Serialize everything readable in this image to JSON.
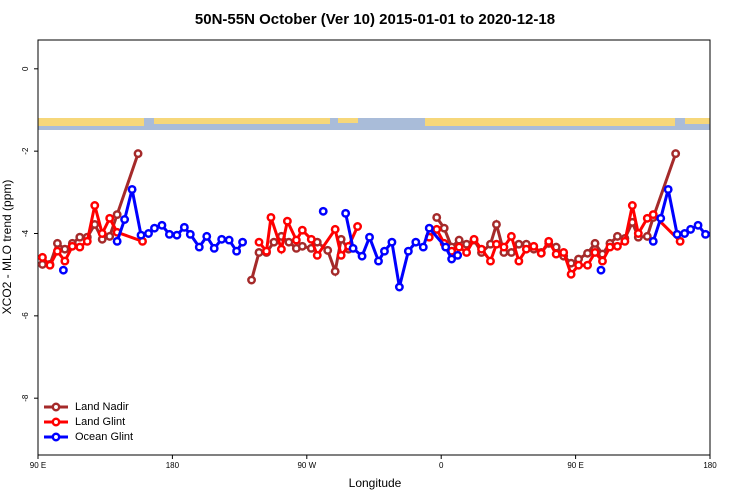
{
  "chart_data": {
    "type": "line",
    "title": "50N-55N October (Ver 10)   2015-01-01 to 2020-12-18",
    "xlabel": "Longitude",
    "ylabel": "XCO2 - MLO trend (ppm)",
    "xlim": [
      90,
      540
    ],
    "ylim": [
      -9.38,
      0.7
    ],
    "xticks": [
      {
        "value": 90,
        "label": "90 E"
      },
      {
        "value": 180,
        "label": "180"
      },
      {
        "value": 270,
        "label": "90 W"
      },
      {
        "value": 360,
        "label": "0"
      },
      {
        "value": 450,
        "label": "90 E"
      },
      {
        "value": 540,
        "label": "180"
      }
    ],
    "yticks": [
      0,
      -2,
      -4,
      -6,
      -8
    ],
    "legend": "bottom-left",
    "series": [
      {
        "name": "Land Nadir",
        "color": "#a52a2a",
        "x": [
          93,
          98,
          103,
          108,
          113,
          118,
          123,
          128,
          133,
          138,
          143,
          157,
          null,
          233,
          238,
          243,
          248,
          253,
          258,
          263,
          267,
          273,
          277,
          284,
          289,
          293,
          298,
          null,
          357,
          362,
          367,
          372,
          377,
          382,
          387,
          393,
          397,
          402,
          407,
          412,
          417,
          422,
          427,
          432,
          437,
          442,
          447,
          452,
          458,
          463,
          468,
          473,
          478,
          483,
          488,
          492,
          498,
          502,
          517
        ],
        "values": [
          -4.75,
          -4.75,
          -4.24,
          -4.38,
          -4.24,
          -4.09,
          -4.09,
          -3.78,
          -4.14,
          -4.07,
          -3.54,
          -2.06,
          null,
          -5.13,
          -4.46,
          -4.46,
          -4.21,
          -4.07,
          -4.21,
          -4.36,
          -4.31,
          -4.36,
          -4.21,
          -4.41,
          -4.92,
          -4.14,
          -4.38,
          null,
          -3.61,
          -3.87,
          -4.33,
          -4.16,
          -4.26,
          -4.16,
          -4.46,
          -4.26,
          -3.78,
          -4.46,
          -4.46,
          -4.26,
          -4.26,
          -4.38,
          -4.46,
          -4.24,
          -4.33,
          -4.55,
          -4.72,
          -4.62,
          -4.48,
          -4.24,
          -4.5,
          -4.24,
          -4.07,
          -4.12,
          -3.73,
          -4.09,
          -4.07,
          -3.61,
          -2.06
        ]
      },
      {
        "name": "Land Glint",
        "color": "#ff0000",
        "x": [
          93,
          98,
          103,
          108,
          113,
          118,
          123,
          128,
          133,
          138,
          143,
          160,
          null,
          238,
          243,
          246,
          253,
          257,
          263,
          267,
          273,
          277,
          289,
          293,
          298,
          304,
          null,
          352,
          357,
          362,
          367,
          372,
          377,
          382,
          387,
          393,
          397,
          402,
          407,
          412,
          417,
          422,
          427,
          432,
          437,
          442,
          447,
          452,
          458,
          463,
          468,
          473,
          478,
          483,
          488,
          492,
          498,
          502,
          520
        ],
        "values": [
          -4.58,
          -4.77,
          -4.43,
          -4.67,
          -4.31,
          -4.33,
          -4.19,
          -3.32,
          -4.0,
          -3.63,
          -3.97,
          -4.19,
          null,
          -4.21,
          -4.43,
          -3.61,
          -4.38,
          -3.7,
          -4.16,
          -3.92,
          -4.14,
          -4.53,
          -3.9,
          -4.53,
          -4.31,
          -3.83,
          null,
          -4.09,
          -3.9,
          -4.24,
          -4.43,
          -4.33,
          -4.46,
          -4.14,
          -4.38,
          -4.67,
          -4.26,
          -4.33,
          -4.07,
          -4.67,
          -4.38,
          -4.31,
          -4.48,
          -4.19,
          -4.5,
          -4.46,
          -4.99,
          -4.77,
          -4.77,
          -4.46,
          -4.67,
          -4.33,
          -4.31,
          -4.19,
          -3.32,
          -4.0,
          -3.63,
          -3.54,
          -4.19
        ]
      },
      {
        "name": "Ocean Glint",
        "color": "#0000ff",
        "x": [
          107,
          null,
          143,
          148,
          153,
          159,
          164,
          168,
          173,
          178,
          183,
          188,
          192,
          198,
          203,
          208,
          213,
          218,
          223,
          227,
          null,
          281,
          null,
          296,
          301,
          307,
          312,
          318,
          322,
          327,
          332,
          338,
          343,
          348,
          352,
          363,
          367,
          371,
          null,
          467,
          null,
          502,
          507,
          512,
          518,
          523,
          527,
          532,
          537
        ],
        "values": [
          -4.89,
          null,
          -4.19,
          -3.66,
          -2.93,
          -4.04,
          -4.0,
          -3.87,
          -3.8,
          -4.02,
          -4.04,
          -3.85,
          -4.02,
          -4.33,
          -4.07,
          -4.36,
          -4.14,
          -4.16,
          -4.43,
          -4.21,
          null,
          -3.46,
          null,
          -3.51,
          -4.36,
          -4.55,
          -4.09,
          -4.67,
          -4.43,
          -4.21,
          -5.3,
          -4.43,
          -4.21,
          -4.33,
          -3.87,
          -4.33,
          -4.62,
          -4.53,
          null,
          -4.89,
          null,
          -4.19,
          -3.63,
          -2.93,
          -4.02,
          -4.0,
          -3.9,
          -3.8,
          -4.02
        ]
      }
    ]
  }
}
